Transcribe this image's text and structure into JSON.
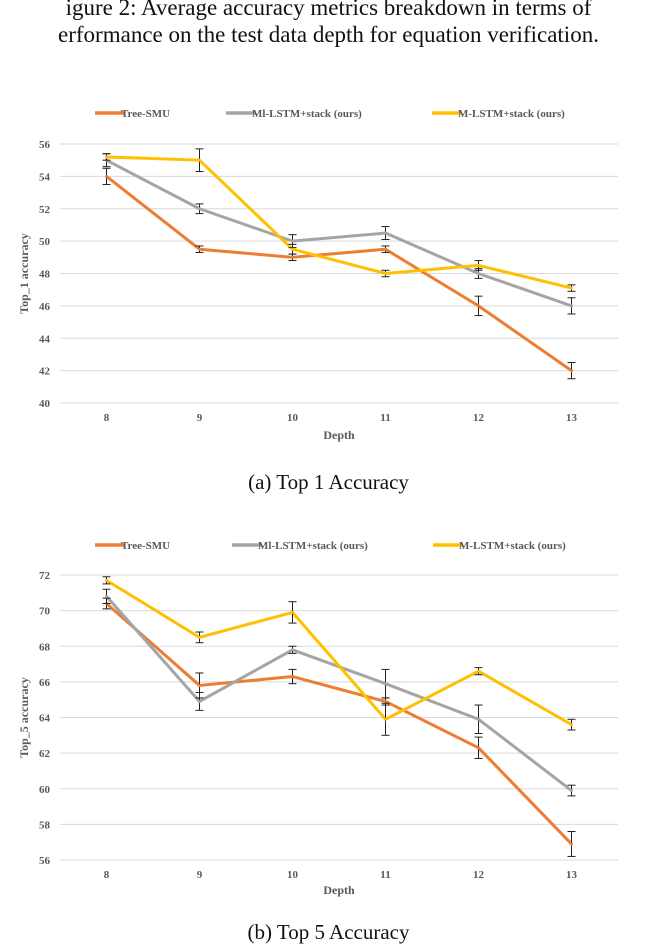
{
  "caption_lines": [
    "igure 2: Average accuracy metrics breakdown in terms of",
    "erformance on the test data depth for equation verification."
  ],
  "colors": {
    "tree_smu": "#ED7D31",
    "ml_lstm": "#A5A5A5",
    "m_lstm": "#FFC000",
    "grid": "#D9D9D9",
    "axis_text": "#595959"
  },
  "chart_data": [
    {
      "type": "line",
      "caption": "(a) Top 1 Accuracy",
      "categories": [
        "8",
        "9",
        "10",
        "11",
        "12",
        "13"
      ],
      "xlabel": "Depth",
      "ylabel": "Top_1 accuracy",
      "ylim": [
        40,
        56
      ],
      "yticks": [
        40,
        42,
        44,
        46,
        48,
        50,
        52,
        54,
        56
      ],
      "grid": true,
      "legend": "top",
      "series": [
        {
          "name": "Tree-SMU",
          "color": "#ED7D31",
          "values": [
            54.0,
            49.5,
            49.0,
            49.5,
            46.0,
            42.0
          ],
          "errors": [
            0.5,
            0.2,
            0.2,
            0.2,
            0.6,
            0.5
          ]
        },
        {
          "name": "Ml-LSTM+stack (ours)",
          "color": "#A5A5A5",
          "values": [
            55.0,
            52.0,
            50.0,
            50.5,
            48.0,
            46.0
          ],
          "errors": [
            0.4,
            0.3,
            0.4,
            0.4,
            0.3,
            0.5
          ]
        },
        {
          "name": "M-LSTM+stack (ours)",
          "color": "#FFC000",
          "values": [
            55.2,
            55.0,
            49.5,
            48.0,
            48.5,
            47.1
          ],
          "errors": [
            0.2,
            0.7,
            0.3,
            0.2,
            0.3,
            0.2
          ]
        }
      ]
    },
    {
      "type": "line",
      "caption": "(b) Top 5 Accuracy",
      "categories": [
        "8",
        "9",
        "10",
        "11",
        "12",
        "13"
      ],
      "xlabel": "Depth",
      "ylabel": "Top_5 accuracy",
      "ylim": [
        56,
        72
      ],
      "yticks": [
        56,
        58,
        60,
        62,
        64,
        66,
        68,
        70,
        72
      ],
      "grid": true,
      "legend": "top",
      "series": [
        {
          "name": "Tree-SMU",
          "color": "#ED7D31",
          "values": [
            70.4,
            65.8,
            66.3,
            64.9,
            62.3,
            56.9
          ],
          "errors": [
            0.3,
            0.7,
            0.4,
            0.2,
            0.6,
            0.7
          ]
        },
        {
          "name": "Ml-LSTM+stack (ours)",
          "color": "#A5A5A5",
          "values": [
            70.8,
            64.9,
            67.8,
            65.9,
            63.9,
            59.9
          ],
          "errors": [
            0.4,
            0.5,
            0.2,
            0.8,
            0.8,
            0.3
          ]
        },
        {
          "name": "M-LSTM+stack (ours)",
          "color": "#FFC000",
          "values": [
            71.7,
            68.5,
            69.9,
            63.9,
            66.6,
            63.6
          ],
          "errors": [
            0.2,
            0.3,
            0.6,
            0.9,
            0.2,
            0.3
          ]
        }
      ]
    }
  ]
}
